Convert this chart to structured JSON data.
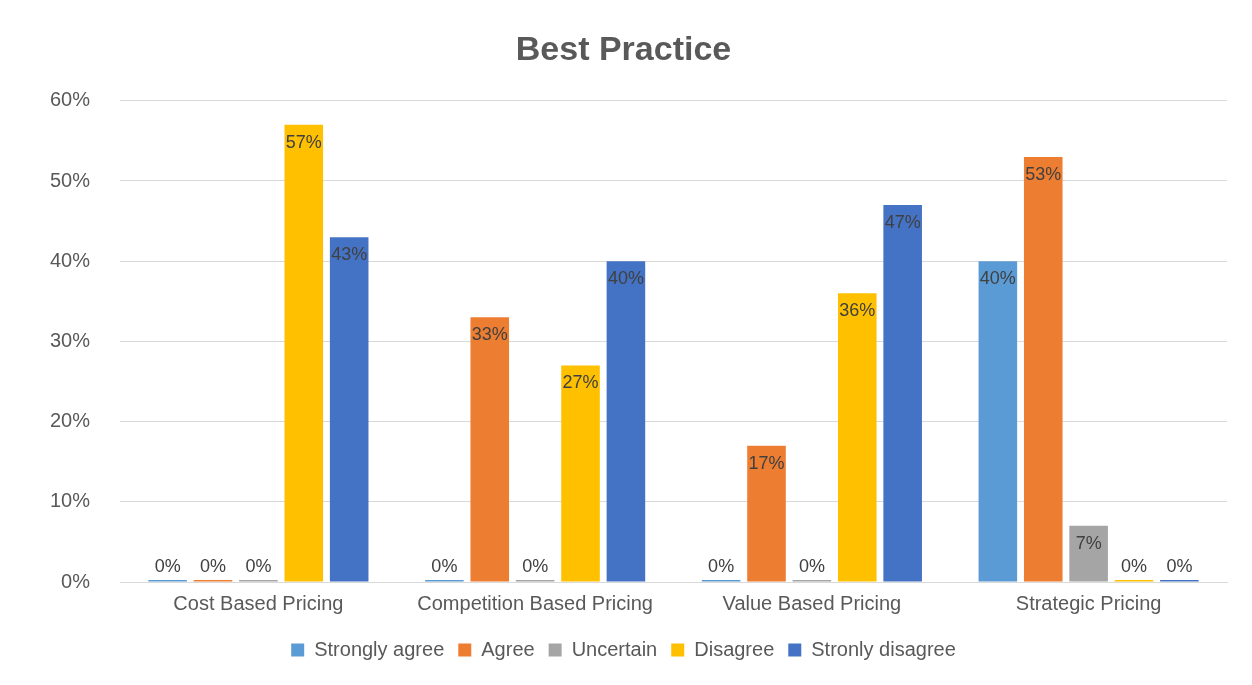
{
  "chart_data": {
    "type": "bar",
    "title": "Best Practice",
    "categories": [
      "Cost Based Pricing",
      "Competition Based Pricing",
      "Value Based Pricing",
      "Strategic Pricing"
    ],
    "series": [
      {
        "name": "Strongly agree",
        "color": "#5b9bd5",
        "values": [
          0,
          0,
          0,
          40
        ],
        "value_labels": [
          "0%",
          "0%",
          "0%",
          "40%"
        ]
      },
      {
        "name": "Agree",
        "color": "#ed7d31",
        "values": [
          0,
          33,
          17,
          53
        ],
        "value_labels": [
          "0%",
          "33%",
          "17%",
          "53%"
        ]
      },
      {
        "name": "Uncertain",
        "color": "#a5a5a5",
        "values": [
          0,
          0,
          0,
          7
        ],
        "value_labels": [
          "0%",
          "0%",
          "0%",
          "7%"
        ]
      },
      {
        "name": "Disagree",
        "color": "#ffc000",
        "values": [
          57,
          27,
          36,
          0
        ],
        "value_labels": [
          "57%",
          "27%",
          "36%",
          "0%"
        ]
      },
      {
        "name": "Stronly disagree",
        "color": "#4472c4",
        "values": [
          43,
          40,
          47,
          0
        ],
        "value_labels": [
          "43%",
          "40%",
          "47%",
          "0%"
        ]
      }
    ],
    "ylim": [
      0,
      60
    ],
    "yticks": [
      {
        "value": 0,
        "label": "0%"
      },
      {
        "value": 10,
        "label": "10%"
      },
      {
        "value": 20,
        "label": "20%"
      },
      {
        "value": 30,
        "label": "30%"
      },
      {
        "value": 40,
        "label": "40%"
      },
      {
        "value": 50,
        "label": "50%"
      },
      {
        "value": 60,
        "label": "60%"
      }
    ],
    "grid": "y",
    "legend": "bottom"
  }
}
